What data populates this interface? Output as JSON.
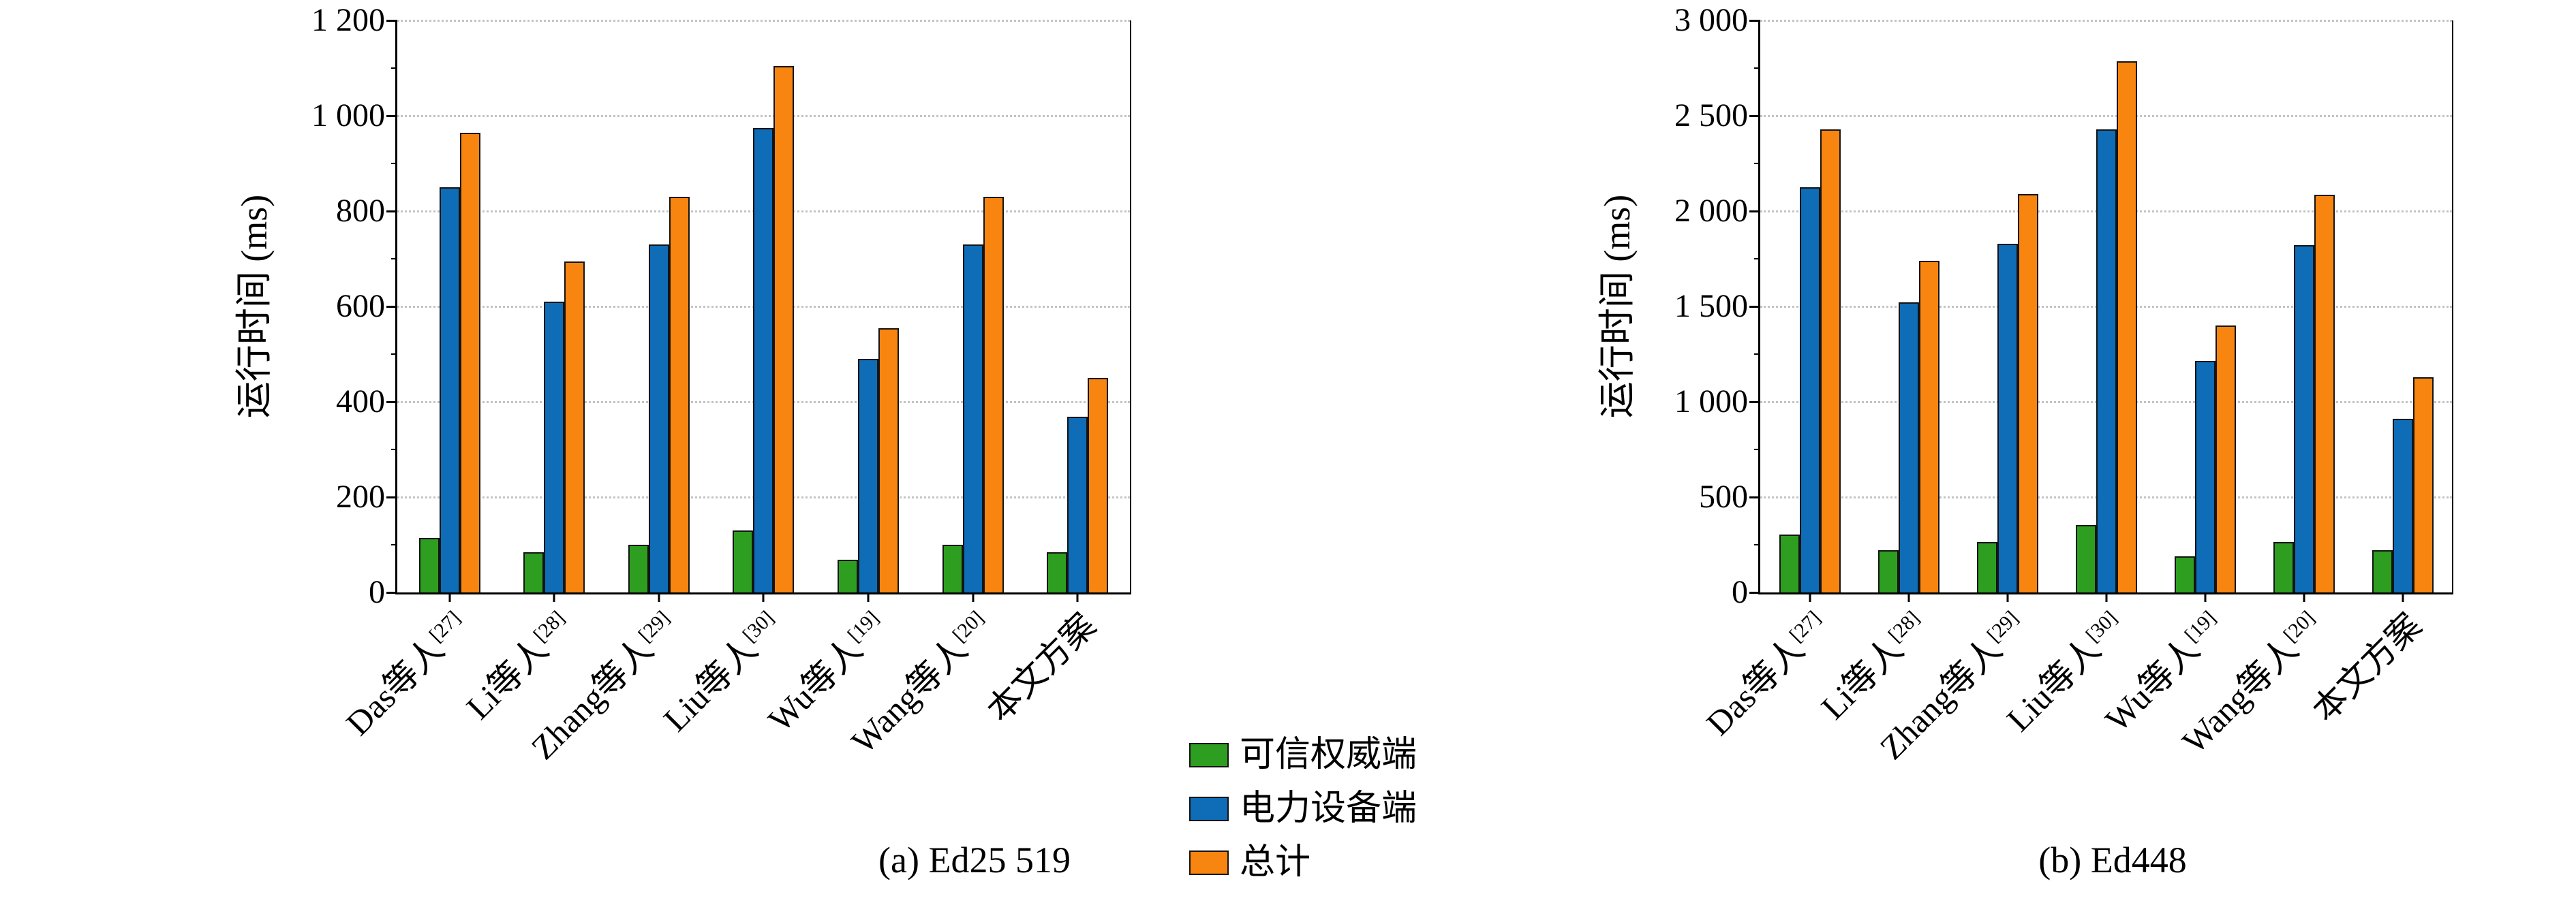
{
  "figure": {
    "background": "#ffffff"
  },
  "chart_data": [
    {
      "type": "bar",
      "caption": "(a) Ed25 519",
      "ylabel": "运行时间 (ms)",
      "ylim": [
        0,
        1200
      ],
      "ytick_step": 200,
      "ytick_minor_step": 100,
      "ytick_labels": [
        "0",
        "200",
        "400",
        "600",
        "800",
        "1 000",
        "1 200"
      ],
      "grid": "horizontal-dotted",
      "categories": [
        {
          "label": "Das等人",
          "cite": "[27]"
        },
        {
          "label": "Li等人",
          "cite": "[28]"
        },
        {
          "label": "Zhang等人",
          "cite": "[29]"
        },
        {
          "label": "Liu等人",
          "cite": "[30]"
        },
        {
          "label": "Wu等人",
          "cite": "[19]"
        },
        {
          "label": "Wang等人",
          "cite": "[20]"
        },
        {
          "label": "本文方案",
          "cite": ""
        }
      ],
      "series": [
        {
          "name": "可信权威端",
          "color": "#2e9e20",
          "values": [
            115,
            85,
            100,
            130,
            68,
            100,
            85
          ]
        },
        {
          "name": "电力设备端",
          "color": "#0f6cb6",
          "values": [
            850,
            610,
            730,
            975,
            490,
            730,
            368
          ]
        },
        {
          "name": "总计",
          "color": "#f98511",
          "values": [
            965,
            695,
            830,
            1105,
            555,
            830,
            450
          ]
        }
      ]
    },
    {
      "type": "bar",
      "caption": "(b) Ed448",
      "ylabel": "运行时间 (ms)",
      "ylim": [
        0,
        3000
      ],
      "ytick_step": 500,
      "ytick_minor_step": 250,
      "ytick_labels": [
        "0",
        "500",
        "1 000",
        "1 500",
        "2 000",
        "2 500",
        "3 000"
      ],
      "grid": "horizontal-dotted",
      "categories": [
        {
          "label": "Das等人",
          "cite": "[27]"
        },
        {
          "label": "Li等人",
          "cite": "[28]"
        },
        {
          "label": "Zhang等人",
          "cite": "[29]"
        },
        {
          "label": "Liu等人",
          "cite": "[30]"
        },
        {
          "label": "Wu等人",
          "cite": "[19]"
        },
        {
          "label": "Wang等人",
          "cite": "[20]"
        },
        {
          "label": "本文方案",
          "cite": ""
        }
      ],
      "series": [
        {
          "name": "可信权威端",
          "color": "#2e9e20",
          "values": [
            305,
            220,
            265,
            355,
            190,
            265,
            220
          ]
        },
        {
          "name": "电力设备端",
          "color": "#0f6cb6",
          "values": [
            2125,
            1520,
            1830,
            2430,
            1215,
            1820,
            910
          ]
        },
        {
          "name": "总计",
          "color": "#f98511",
          "values": [
            2430,
            1740,
            2090,
            2785,
            1400,
            2085,
            1130
          ]
        }
      ]
    }
  ],
  "legend": {
    "items": [
      {
        "label": "可信权威端",
        "color": "#2e9e20"
      },
      {
        "label": "电力设备端",
        "color": "#0f6cb6"
      },
      {
        "label": "总计",
        "color": "#f98511"
      }
    ]
  }
}
